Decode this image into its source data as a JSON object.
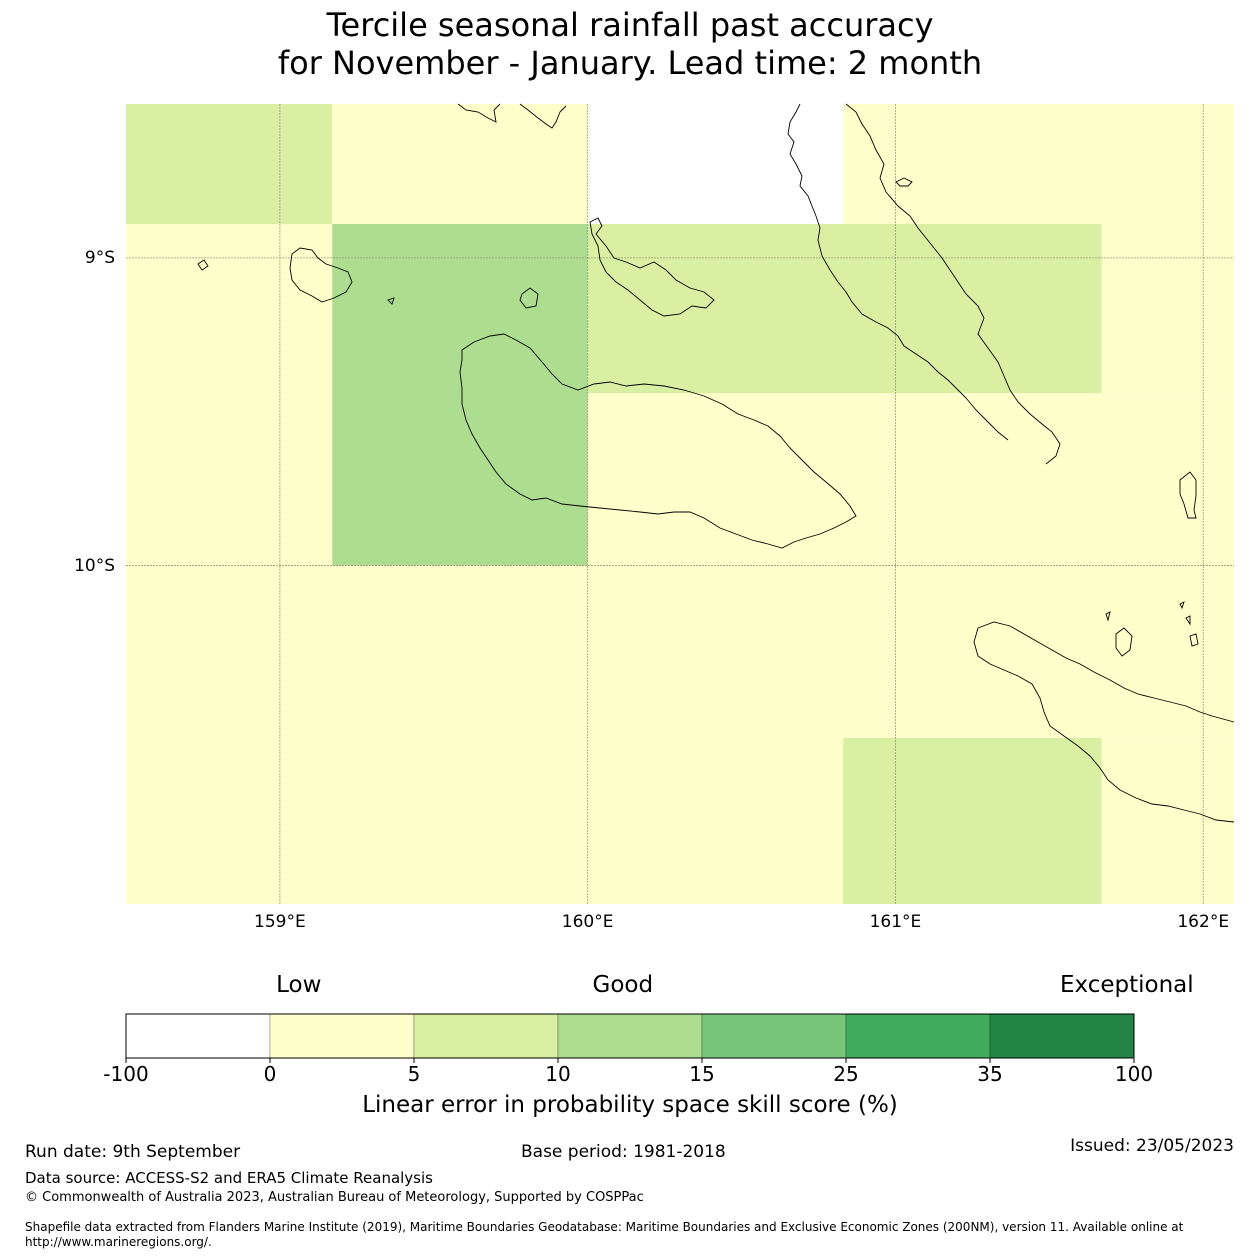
{
  "title": {
    "line1": "Tercile seasonal rainfall past accuracy",
    "line2": "for November - January. Lead time: 2 month"
  },
  "map": {
    "extent": {
      "lon": [
        158.5,
        162.1
      ],
      "lat": [
        -11.1,
        -8.5
      ]
    },
    "x_ticks": [
      {
        "lon": 159,
        "label": "159°E"
      },
      {
        "lon": 160,
        "label": "160°E"
      },
      {
        "lon": 161,
        "label": "161°E"
      },
      {
        "lon": 162,
        "label": "162°E"
      }
    ],
    "y_ticks": [
      {
        "lat": -9,
        "label": "9°S"
      },
      {
        "lat": -10,
        "label": "10°S"
      }
    ],
    "cells": [
      {
        "lon": [
          158.5,
          159.17
        ],
        "lat": [
          -8.5,
          -8.89
        ],
        "bin": 2
      },
      {
        "lon": [
          159.17,
          160.0
        ],
        "lat": [
          -8.5,
          -8.89
        ],
        "bin": 1
      },
      {
        "lon": [
          160.83,
          162.1
        ],
        "lat": [
          -8.5,
          -8.89
        ],
        "bin": 1
      },
      {
        "lon": [
          158.5,
          159.17
        ],
        "lat": [
          -8.89,
          -11.1
        ],
        "bin": 1
      },
      {
        "lon": [
          159.17,
          160.0
        ],
        "lat": [
          -8.89,
          -10.0
        ],
        "bin": 3
      },
      {
        "lon": [
          159.17,
          160.83
        ],
        "lat": [
          -10.0,
          -11.1
        ],
        "bin": 1
      },
      {
        "lon": [
          160.0,
          161.67
        ],
        "lat": [
          -8.89,
          -9.44
        ],
        "bin": 2
      },
      {
        "lon": [
          161.67,
          162.1
        ],
        "lat": [
          -8.89,
          -9.44
        ],
        "bin": 1
      },
      {
        "lon": [
          160.0,
          162.1
        ],
        "lat": [
          -9.44,
          -10.0
        ],
        "bin": 1
      },
      {
        "lon": [
          160.83,
          162.1
        ],
        "lat": [
          -10.0,
          -10.56
        ],
        "bin": 1
      },
      {
        "lon": [
          160.83,
          161.67
        ],
        "lat": [
          -10.56,
          -11.1
        ],
        "bin": 2
      },
      {
        "lon": [
          161.67,
          162.1
        ],
        "lat": [
          -10.56,
          -11.1
        ],
        "bin": 1
      }
    ]
  },
  "legend": {
    "categories": [
      {
        "label": "Low",
        "at": 0
      },
      {
        "label": "Good",
        "at": 10
      },
      {
        "label": "Exceptional",
        "at": 100
      }
    ],
    "bins": [
      {
        "from": -100,
        "to": 0,
        "color": "#ffffff"
      },
      {
        "from": 0,
        "to": 5,
        "color": "#ffffcc"
      },
      {
        "from": 5,
        "to": 10,
        "color": "#d9f0a3"
      },
      {
        "from": 10,
        "to": 15,
        "color": "#addd8e"
      },
      {
        "from": 15,
        "to": 25,
        "color": "#78c679"
      },
      {
        "from": 25,
        "to": 35,
        "color": "#41ab5d"
      },
      {
        "from": 35,
        "to": 100,
        "color": "#238443"
      }
    ],
    "tick_labels": [
      "-100",
      "0",
      "5",
      "10",
      "15",
      "25",
      "35",
      "100"
    ],
    "label": "Linear error in probability space skill score (%)"
  },
  "footer": {
    "run_date": "Run date: 9th September",
    "base_period": "Base period: 1981-2018",
    "issued": "Issued: 23/05/2023",
    "data_source": "Data source: ACCESS-S2 and ERA5 Climate Reanalysis",
    "copyright": "© Commonwealth of Australia 2023, Australian Bureau of Meteorology, Supported by COSPPac",
    "shapefile": "Shapefile data extracted from Flanders Marine Institute (2019), Maritime Boundaries Geodatabase: Maritime Boundaries and Exclusive Economic Zones (200NM), version 11. Available online at http://www.marineregions.org/."
  }
}
